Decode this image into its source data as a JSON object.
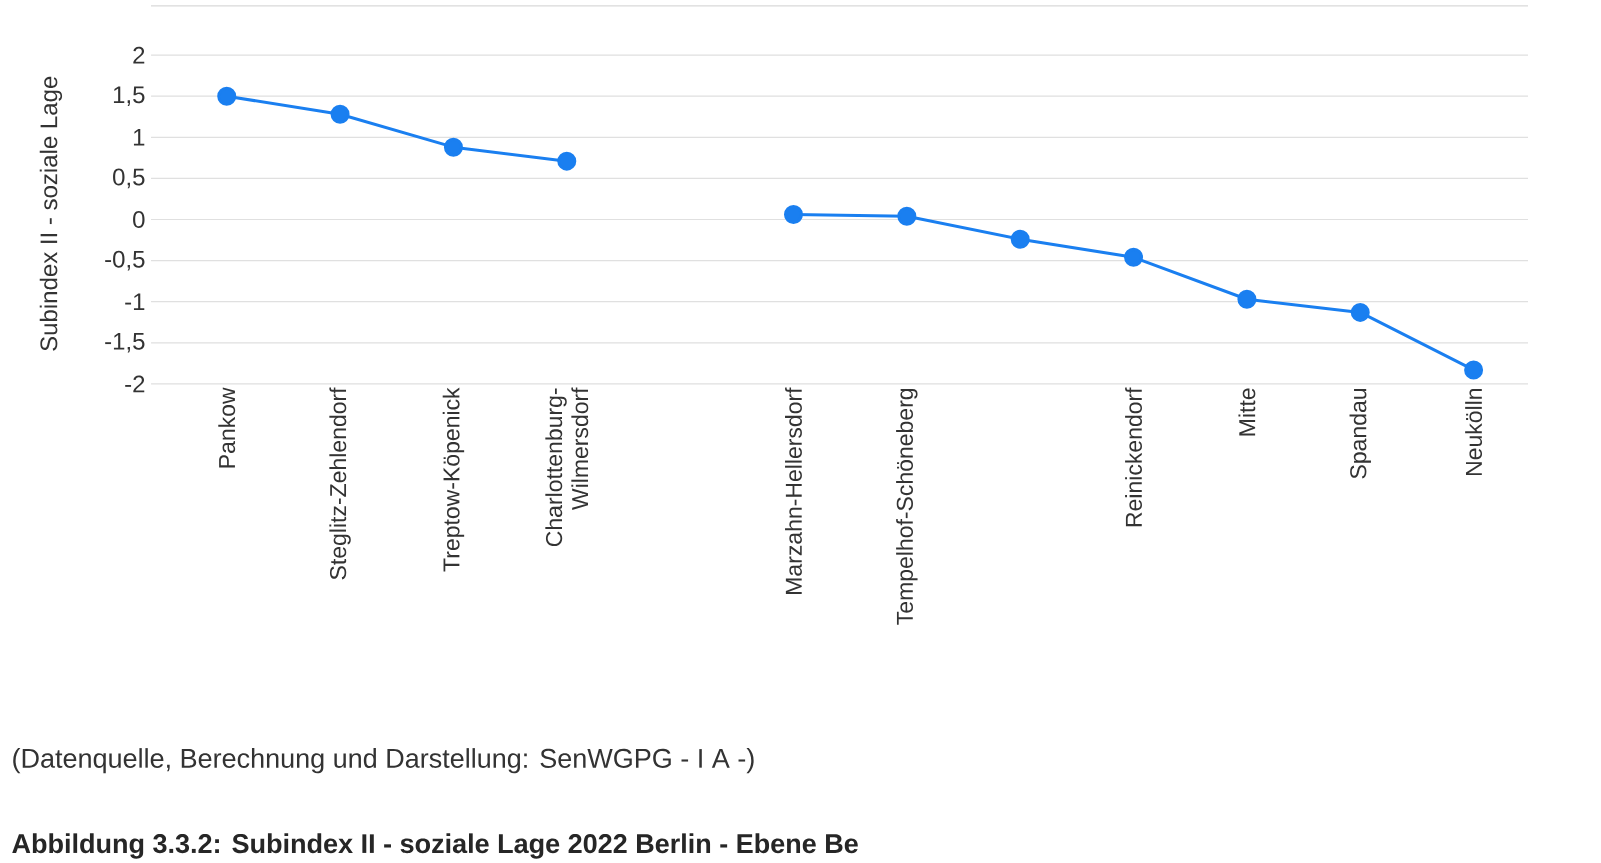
{
  "chart_data": {
    "type": "line",
    "title": "Abbildung 3.3.2: Subindex II - soziale Lage 2022 Berlin - Ebene Be",
    "ylabel": "Subindex II - soziale Lage",
    "categories": [
      "Pankow",
      "Steglitz-Zehlendorf",
      "Treptow-Köpenick",
      "Charlottenburg-Wilmersdorf",
      null,
      "Marzahn-Hellersdorf",
      "Tempelhof-Schöneberg",
      null,
      "Reinickendorf",
      "Mitte",
      "Spandau",
      "Neukölln"
    ],
    "series": [
      {
        "color": "#1a7ff0",
        "values": [
          1.5,
          1.28,
          0.88,
          0.71,
          null,
          0.06,
          0.04,
          -0.24,
          -0.46,
          -0.97,
          -1.13,
          -1.83
        ]
      }
    ],
    "ylim": [
      -2,
      2.6
    ],
    "yticks": [
      2,
      {
        "value": 1.5,
        "label": "1,5"
      },
      1,
      {
        "value": 0.5,
        "label": "0,5"
      },
      0,
      {
        "value": -0.5,
        "label": "-0,5"
      },
      -1,
      {
        "value": -1.5,
        "label": "-1,5"
      },
      -2
    ],
    "grid": "y",
    "marker": "circle",
    "line_style": "solid",
    "annotations": [
      "(Datenquelle, Berechnung und Darstellung: SenWGPG - I A -)"
    ]
  }
}
